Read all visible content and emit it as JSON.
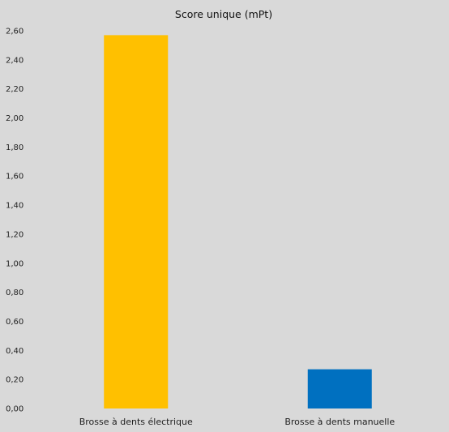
{
  "chart_data": {
    "type": "bar",
    "title": "Score unique (mPt)",
    "xlabel": "",
    "ylabel": "",
    "categories": [
      "Brosse à dents électrique",
      "Brosse à dents manuelle"
    ],
    "values": [
      2.57,
      0.27
    ],
    "colors": [
      "#FFC000",
      "#0070C0"
    ],
    "ylim": [
      0,
      2.6
    ],
    "yticks": [
      0,
      0.2,
      0.4,
      0.6,
      0.8,
      1.0,
      1.2,
      1.4,
      1.6,
      1.8,
      2.0,
      2.2,
      2.4,
      2.6
    ],
    "ytick_labels": [
      "0,00",
      "0,20",
      "0,40",
      "0,60",
      "0,80",
      "1,00",
      "1,20",
      "1,40",
      "1,60",
      "1,80",
      "2,00",
      "2,20",
      "2,40",
      "2,60"
    ],
    "grid": false,
    "legend": "none",
    "background": "#D9D9D9"
  }
}
